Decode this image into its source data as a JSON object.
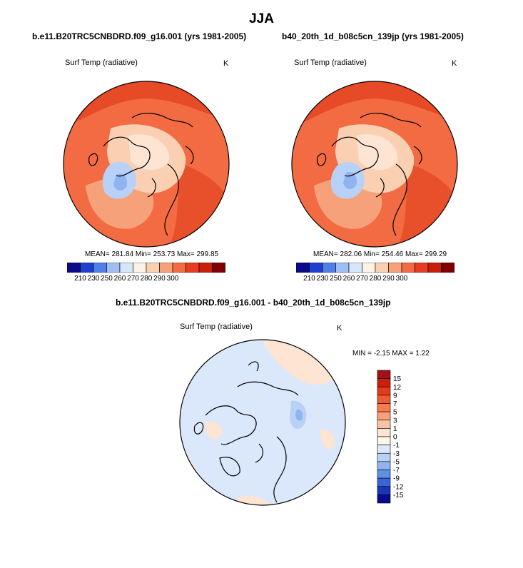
{
  "figure": {
    "title": "JJA"
  },
  "panels": {
    "left": {
      "case_title": "b.e11.B20TRC5CNBDRD.f09_g16.001 (yrs 1981-2005)",
      "variable": "Surf Temp (radiative)",
      "units": "K",
      "stats": "MEAN= 281.84  Min= 253.73  Max= 299.85"
    },
    "right": {
      "case_title": "b40_20th_1d_b08c5cn_139jp (yrs 1981-2005)",
      "variable": "Surf Temp (radiative)",
      "units": "K",
      "stats": "MEAN= 282.06  Min= 254.46  Max= 299.29"
    },
    "diff": {
      "case_title": "b.e11.B20TRC5CNBDRD.f09_g16.001 - b40_20th_1d_b08c5cn_139jp",
      "variable": "Surf Temp (radiative)",
      "units": "K",
      "stats": "MIN =  -2.15 MAX =   1.22"
    }
  },
  "colorbars": {
    "absolute": {
      "labels": [
        "210",
        "230",
        "250",
        "260",
        "270",
        "280",
        "290",
        "300"
      ],
      "colors": [
        "#0a0a8a",
        "#1f3fd0",
        "#4f7fe8",
        "#9fbff2",
        "#d6e6fb",
        "#fdf2e8",
        "#fbd0b2",
        "#f7a17a",
        "#f26b43",
        "#e63c20",
        "#c81e0a",
        "#7f0000"
      ]
    },
    "difference": {
      "labels": [
        "15",
        "12",
        "9",
        "7",
        "5",
        "3",
        "1",
        "0",
        "-1",
        "-3",
        "-5",
        "-7",
        "-9",
        "-12",
        "-15"
      ],
      "colors": [
        "#a50f15",
        "#c8200c",
        "#e23b1f",
        "#f25a2f",
        "#f77d4f",
        "#f9a07a",
        "#fbc3a6",
        "#fde4d3",
        "#fdf5ec",
        "#dbe8fb",
        "#b7d1f7",
        "#8fb4f0",
        "#5f90e6",
        "#3b64d8",
        "#1a35b8",
        "#0a0a8a"
      ]
    }
  }
}
